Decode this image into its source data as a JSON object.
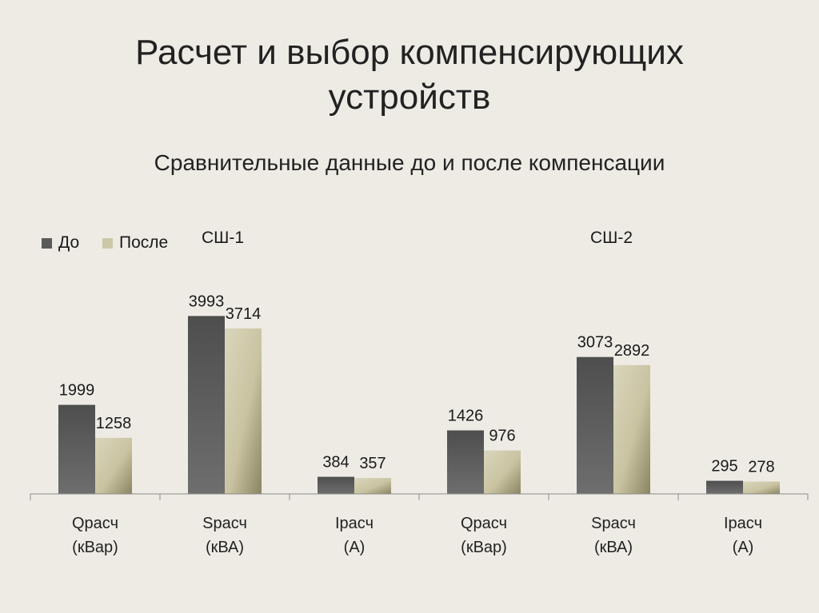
{
  "slide": {
    "title_line1": "Расчет и выбор компенсирующих",
    "title_line2": "устройств"
  },
  "colors": {
    "background": "#eeebe5",
    "series_before": "#5a5a5a",
    "series_after": "#ccc7a6",
    "axis": "#8c8c8c"
  },
  "chart_data": {
    "type": "bar",
    "title": "Сравнительные данные до и после компенсации",
    "legend_position": "top-left",
    "grid": false,
    "groups": [
      {
        "label": "СШ-1",
        "categories": [
          0,
          1,
          2
        ]
      },
      {
        "label": "СШ-2",
        "categories": [
          3,
          4,
          5
        ]
      }
    ],
    "categories": [
      {
        "line1": "Qрасч",
        "line2": "(кВар)"
      },
      {
        "line1": "Sрасч",
        "line2": "(кВА)"
      },
      {
        "line1": "Iрасч",
        "line2": "(А)"
      },
      {
        "line1": "Qрасч",
        "line2": "(кВар)"
      },
      {
        "line1": "Sрасч",
        "line2": "(кВА)"
      },
      {
        "line1": "Iрасч",
        "line2": "(А)"
      }
    ],
    "series": [
      {
        "name": "До",
        "values": [
          1999,
          3993,
          384,
          1426,
          3073,
          295
        ]
      },
      {
        "name": "После",
        "values": [
          1258,
          3714,
          357,
          976,
          2892,
          278
        ]
      }
    ],
    "ylim": [
      0,
      4700
    ]
  }
}
